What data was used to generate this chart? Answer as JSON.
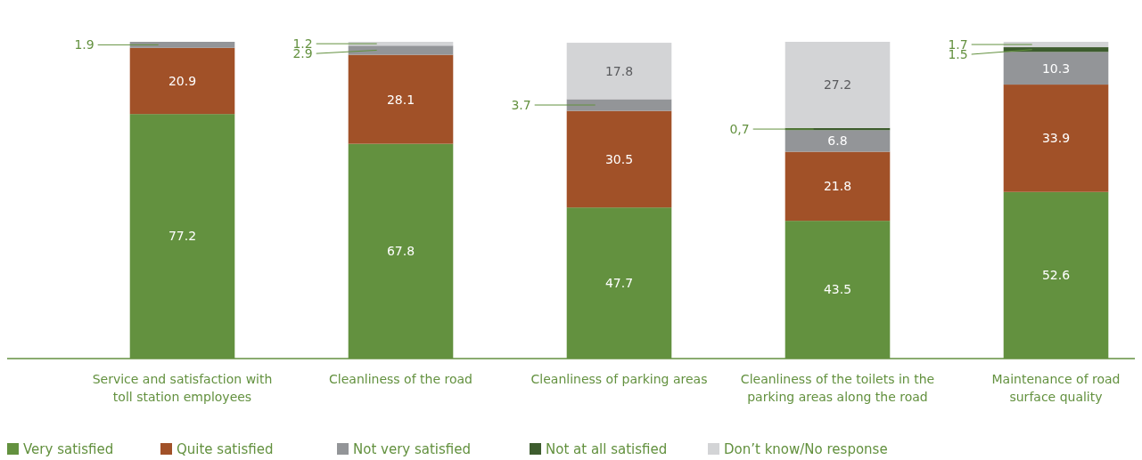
{
  "chart_data": {
    "type": "bar",
    "stacked": true,
    "categories": [
      "Service and satisfaction with toll station employees",
      "Cleanliness of the road",
      "Cleanliness of parking areas",
      "Cleanliness of the toilets in the parking areas along the road",
      "Maintenance of road surface quality"
    ],
    "series": [
      {
        "name": "Very satisfied",
        "color": "#63913f",
        "values": [
          77.2,
          67.8,
          47.7,
          43.5,
          52.6
        ],
        "value_labels": [
          "77.2",
          "67.8",
          "47.7",
          "43.5",
          "52.6"
        ]
      },
      {
        "name": "Quite satisfied",
        "color": "#a15128",
        "values": [
          20.9,
          28.1,
          30.5,
          21.8,
          33.9
        ],
        "value_labels": [
          "20.9",
          "28.1",
          "30.5",
          "21.8",
          "33.9"
        ]
      },
      {
        "name": "Not very satisfied",
        "color": "#939598",
        "values": [
          1.9,
          2.9,
          3.7,
          6.8,
          10.3
        ],
        "value_labels": [
          "1.9",
          "2.9",
          "3.7",
          "6.8",
          "10.3"
        ]
      },
      {
        "name": "Not at all satisfied",
        "color": "#3d5c2e",
        "values": [
          null,
          null,
          null,
          0.7,
          1.5
        ],
        "value_labels": [
          null,
          null,
          null,
          "0,7",
          "1.5"
        ]
      },
      {
        "name": "Don’t know/No response",
        "color": "#d3d4d6",
        "values": [
          null,
          1.2,
          17.8,
          27.2,
          1.7
        ],
        "value_labels": [
          null,
          "1.2",
          "17.8",
          "27.2",
          "1.7"
        ]
      }
    ],
    "ylim": [
      0,
      100
    ],
    "tick_labels": "x",
    "legend": "bottom left"
  }
}
